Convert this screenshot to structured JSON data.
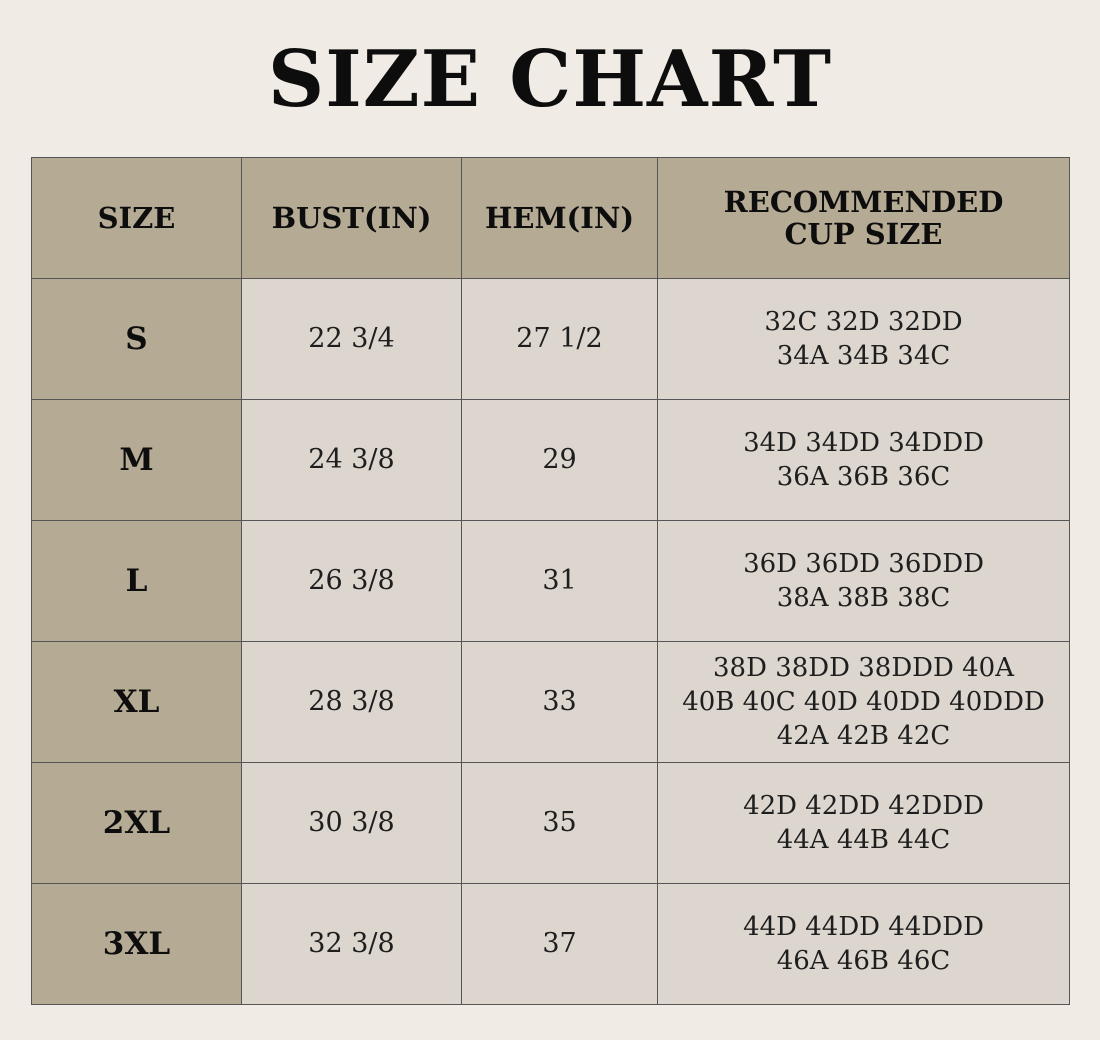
{
  "title": "SIZE CHART",
  "headers": [
    "SIZE",
    "BUST(IN)",
    "HEM(IN)",
    "RECOMMENDED\nCUP SIZE"
  ],
  "rows": [
    {
      "size": "S",
      "bust": "22 3/4",
      "hem": "27 1/2",
      "cup": "32C 32D 32DD\n34A 34B 34C"
    },
    {
      "size": "M",
      "bust": "24 3/8",
      "hem": "29",
      "cup": "34D 34DD 34DDD\n36A 36B 36C"
    },
    {
      "size": "L",
      "bust": "26 3/8",
      "hem": "31",
      "cup": "36D 36DD 36DDD\n38A 38B 38C"
    },
    {
      "size": "XL",
      "bust": "28 3/8",
      "hem": "33",
      "cup": "38D 38DD 38DDD 40A\n40B 40C 40D 40DD 40DDD\n42A 42B 42C"
    },
    {
      "size": "2XL",
      "bust": "30 3/8",
      "hem": "35",
      "cup": "42D 42DD 42DDD\n44A 44B 44C"
    },
    {
      "size": "3XL",
      "bust": "32 3/8",
      "hem": "37",
      "cup": "44D 44DD 44DDD\n46A 46B 46C"
    }
  ],
  "colors": {
    "background": "#f0ebe4",
    "header": "#b5aa94",
    "cell": "#dcd6ce",
    "border": "#555555"
  }
}
